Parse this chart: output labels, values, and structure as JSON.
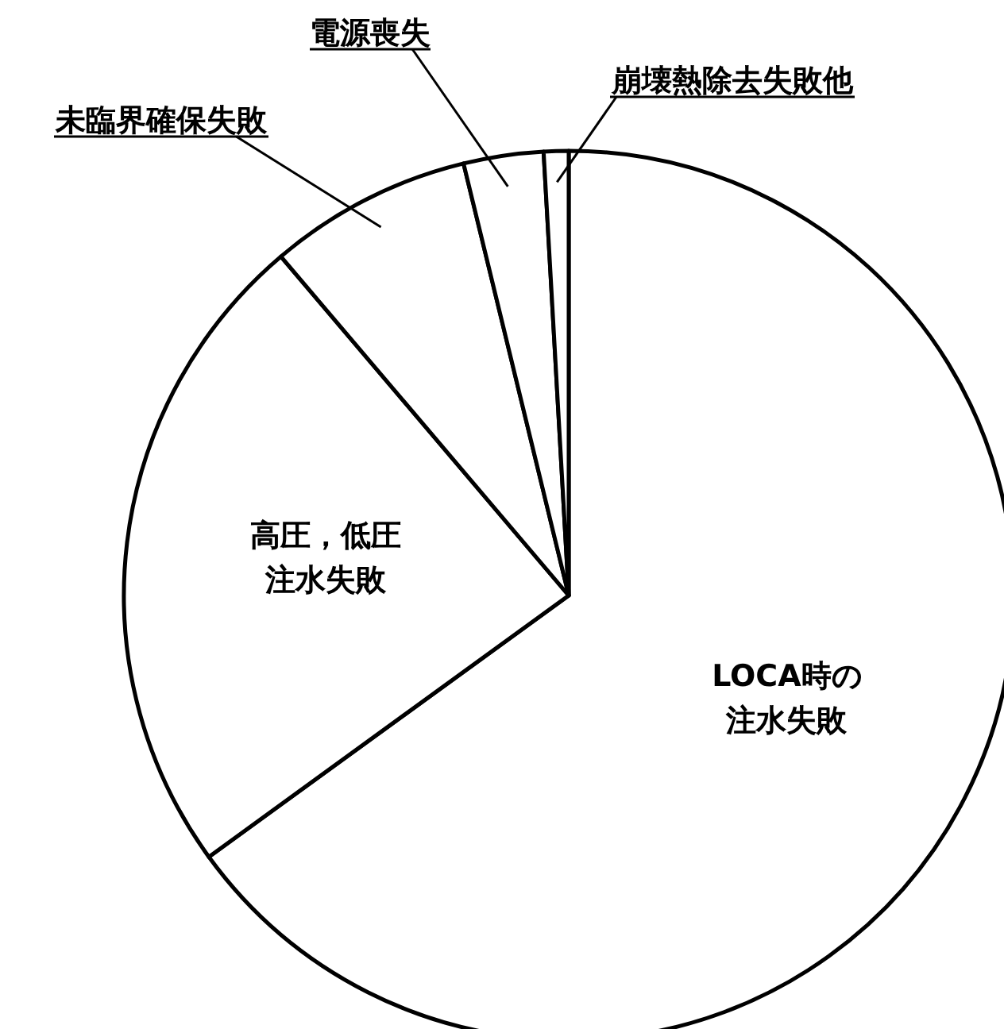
{
  "chart_data": {
    "type": "pie",
    "categories": [
      "LOCA時の注水失敗",
      "高圧，低圧注水失敗",
      "未臨界確保失敗",
      "電源喪失",
      "崩壊熱除去失敗他"
    ],
    "values": [
      65,
      23.8,
      7.4,
      2.9,
      0.9
    ],
    "colors": [
      "#ffffff",
      "#ffffff",
      "#ffffff",
      "#ffffff",
      "#ffffff"
    ],
    "legend": false
  }
}
